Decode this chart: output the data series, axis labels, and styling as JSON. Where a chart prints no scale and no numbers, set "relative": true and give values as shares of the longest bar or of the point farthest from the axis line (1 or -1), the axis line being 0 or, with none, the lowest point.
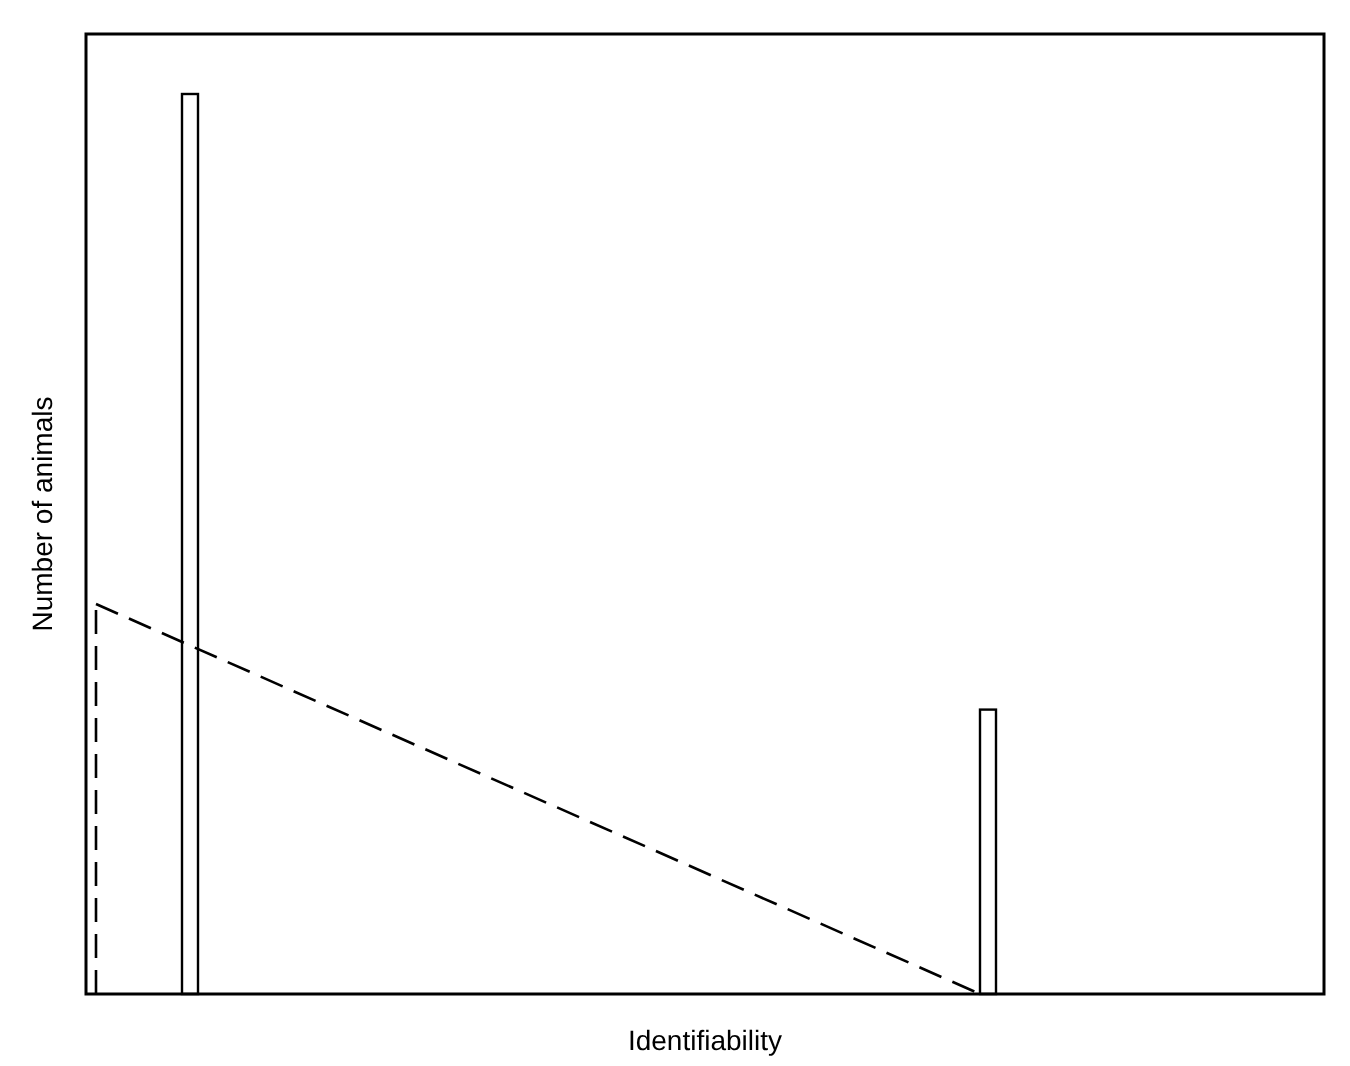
{
  "chart_data": [
    {
      "type": "bar",
      "relative": true,
      "xlabel": "Identifiability",
      "ylabel": "Number of animals",
      "categories": [
        null,
        null
      ],
      "series": [
        {
          "color": "#ffffff",
          "values": [
            1,
            0.316
          ]
        }
      ]
    },
    {
      "type": "line",
      "relative": true,
      "categories": [
        null,
        null
      ],
      "series": [
        {
          "color": "#000000",
          "line_style": "dashed",
          "values": [
            1,
            0
          ]
        }
      ]
    }
  ]
}
